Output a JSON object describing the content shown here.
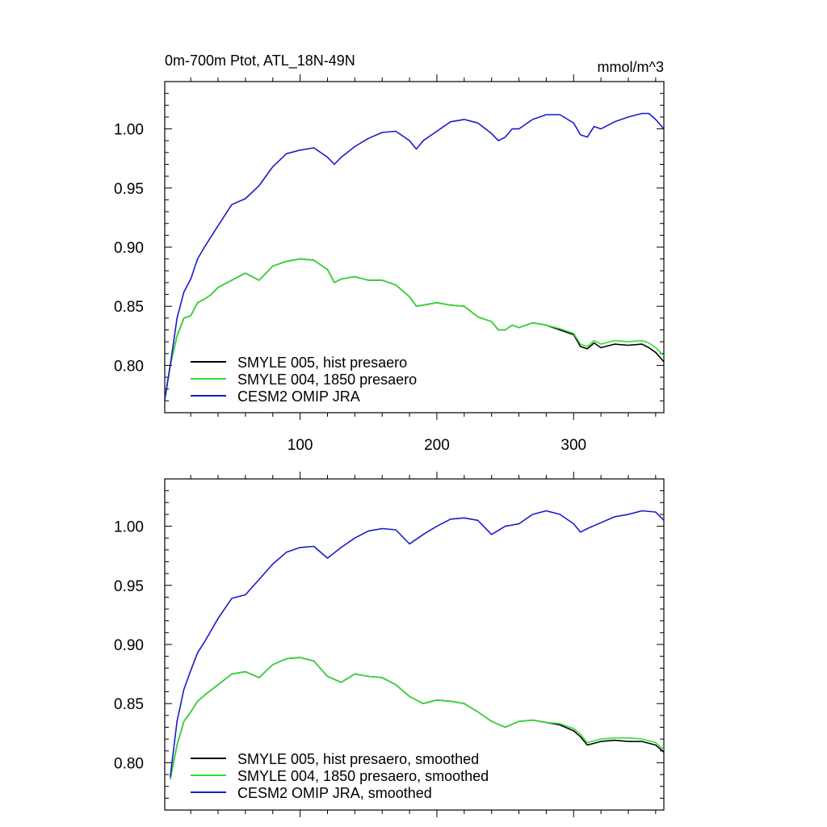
{
  "chart_data": [
    {
      "type": "line",
      "title": "0m-700m Ptot, ATL_18N-49N",
      "units": "mmol/m^3",
      "xlim": [
        1,
        366
      ],
      "ylim": [
        0.76,
        1.04
      ],
      "xticks": [
        100,
        200,
        300
      ],
      "xtick_labels": [
        "100",
        "200",
        "300"
      ],
      "yticks": [
        0.8,
        0.85,
        0.9,
        0.95,
        1.0
      ],
      "ytick_labels": [
        "0.80",
        "0.85",
        "0.90",
        "0.95",
        "1.00"
      ],
      "grid": false,
      "legend_position": "bottom-left",
      "series": [
        {
          "name": "SMYLE 005, hist presaero",
          "color": "#000000",
          "x": [
            1,
            5,
            10,
            15,
            20,
            25,
            30,
            35,
            40,
            50,
            60,
            70,
            80,
            90,
            100,
            110,
            120,
            125,
            130,
            140,
            150,
            160,
            170,
            180,
            185,
            190,
            200,
            210,
            220,
            230,
            240,
            245,
            250,
            255,
            260,
            270,
            280,
            290,
            300,
            305,
            310,
            315,
            320,
            330,
            340,
            350,
            355,
            360,
            366
          ],
          "y": [
            0.771,
            0.8,
            0.825,
            0.84,
            0.842,
            0.853,
            0.856,
            0.86,
            0.866,
            0.872,
            0.878,
            0.872,
            0.884,
            0.888,
            0.89,
            0.889,
            0.881,
            0.87,
            0.873,
            0.875,
            0.872,
            0.872,
            0.868,
            0.858,
            0.85,
            0.851,
            0.853,
            0.851,
            0.85,
            0.841,
            0.837,
            0.83,
            0.83,
            0.834,
            0.832,
            0.836,
            0.834,
            0.83,
            0.826,
            0.816,
            0.814,
            0.819,
            0.815,
            0.818,
            0.817,
            0.818,
            0.815,
            0.811,
            0.803
          ]
        },
        {
          "name": "SMYLE 004, 1850 presaero",
          "color": "#33dd33",
          "x": [
            1,
            5,
            10,
            15,
            20,
            25,
            30,
            35,
            40,
            50,
            60,
            70,
            80,
            90,
            100,
            110,
            120,
            125,
            130,
            140,
            150,
            160,
            170,
            180,
            185,
            190,
            200,
            210,
            220,
            230,
            240,
            245,
            250,
            255,
            260,
            270,
            280,
            290,
            300,
            305,
            310,
            315,
            320,
            330,
            340,
            350,
            355,
            360,
            366
          ],
          "y": [
            0.771,
            0.8,
            0.825,
            0.84,
            0.842,
            0.853,
            0.856,
            0.86,
            0.866,
            0.872,
            0.878,
            0.872,
            0.884,
            0.888,
            0.89,
            0.889,
            0.881,
            0.87,
            0.873,
            0.875,
            0.872,
            0.872,
            0.868,
            0.858,
            0.85,
            0.851,
            0.853,
            0.851,
            0.85,
            0.841,
            0.837,
            0.83,
            0.83,
            0.834,
            0.832,
            0.836,
            0.834,
            0.831,
            0.827,
            0.818,
            0.816,
            0.821,
            0.818,
            0.821,
            0.82,
            0.821,
            0.819,
            0.815,
            0.808
          ]
        },
        {
          "name": "CESM2 OMIP JRA",
          "color": "#1a1acc",
          "x": [
            1,
            5,
            10,
            15,
            20,
            25,
            30,
            40,
            50,
            60,
            70,
            80,
            90,
            100,
            110,
            120,
            125,
            130,
            140,
            150,
            160,
            170,
            180,
            185,
            190,
            200,
            210,
            220,
            230,
            240,
            245,
            250,
            255,
            260,
            270,
            280,
            290,
            300,
            305,
            310,
            315,
            320,
            330,
            340,
            350,
            355,
            360,
            366
          ],
          "y": [
            0.771,
            0.8,
            0.84,
            0.862,
            0.873,
            0.89,
            0.9,
            0.918,
            0.936,
            0.941,
            0.952,
            0.968,
            0.979,
            0.982,
            0.984,
            0.976,
            0.97,
            0.976,
            0.985,
            0.992,
            0.997,
            0.998,
            0.99,
            0.983,
            0.99,
            0.998,
            1.006,
            1.008,
            1.005,
            0.996,
            0.99,
            0.993,
            1.0,
            1.0,
            1.008,
            1.012,
            1.012,
            1.005,
            0.995,
            0.993,
            1.002,
            1.0,
            1.006,
            1.01,
            1.013,
            1.013,
            1.008,
            1.0
          ]
        }
      ]
    },
    {
      "type": "line",
      "xlim": [
        1,
        366
      ],
      "ylim": [
        0.76,
        1.04
      ],
      "xticks": [
        100,
        200,
        300
      ],
      "yticks": [
        0.8,
        0.85,
        0.9,
        0.95,
        1.0
      ],
      "ytick_labels": [
        "0.80",
        "0.85",
        "0.90",
        "0.95",
        "1.00"
      ],
      "grid": false,
      "legend_position": "bottom-left",
      "series": [
        {
          "name": "SMYLE 005, hist presaero, smoothed",
          "color": "#000000",
          "x": [
            5,
            10,
            15,
            20,
            25,
            30,
            40,
            50,
            60,
            70,
            80,
            90,
            100,
            110,
            120,
            130,
            140,
            150,
            160,
            170,
            180,
            190,
            200,
            210,
            220,
            230,
            240,
            250,
            260,
            270,
            280,
            290,
            300,
            305,
            310,
            320,
            330,
            340,
            350,
            360,
            366
          ],
          "y": [
            0.786,
            0.815,
            0.835,
            0.843,
            0.852,
            0.857,
            0.866,
            0.875,
            0.877,
            0.872,
            0.883,
            0.888,
            0.889,
            0.886,
            0.873,
            0.868,
            0.875,
            0.873,
            0.872,
            0.866,
            0.856,
            0.85,
            0.853,
            0.852,
            0.85,
            0.843,
            0.835,
            0.83,
            0.835,
            0.836,
            0.834,
            0.832,
            0.827,
            0.822,
            0.815,
            0.818,
            0.819,
            0.818,
            0.818,
            0.815,
            0.809
          ]
        },
        {
          "name": "SMYLE 004, 1850 presaero, smoothed",
          "color": "#33dd33",
          "x": [
            5,
            10,
            15,
            20,
            25,
            30,
            40,
            50,
            60,
            70,
            80,
            90,
            100,
            110,
            120,
            130,
            140,
            150,
            160,
            170,
            180,
            190,
            200,
            210,
            220,
            230,
            240,
            250,
            260,
            270,
            280,
            290,
            300,
            305,
            310,
            320,
            330,
            340,
            350,
            360,
            366
          ],
          "y": [
            0.786,
            0.815,
            0.835,
            0.843,
            0.852,
            0.857,
            0.866,
            0.875,
            0.877,
            0.872,
            0.883,
            0.888,
            0.889,
            0.886,
            0.873,
            0.868,
            0.875,
            0.873,
            0.872,
            0.866,
            0.856,
            0.85,
            0.853,
            0.852,
            0.85,
            0.843,
            0.835,
            0.83,
            0.835,
            0.836,
            0.834,
            0.833,
            0.829,
            0.824,
            0.817,
            0.82,
            0.821,
            0.821,
            0.82,
            0.817,
            0.811
          ]
        },
        {
          "name": "CESM2 OMIP JRA, smoothed",
          "color": "#1a1acc",
          "x": [
            5,
            10,
            15,
            20,
            25,
            30,
            40,
            50,
            60,
            70,
            80,
            90,
            100,
            110,
            120,
            130,
            140,
            150,
            160,
            170,
            180,
            190,
            200,
            210,
            220,
            230,
            240,
            250,
            260,
            270,
            280,
            290,
            300,
            305,
            310,
            320,
            330,
            340,
            350,
            360,
            366
          ],
          "y": [
            0.788,
            0.835,
            0.862,
            0.878,
            0.893,
            0.902,
            0.922,
            0.939,
            0.942,
            0.955,
            0.968,
            0.978,
            0.982,
            0.983,
            0.973,
            0.982,
            0.99,
            0.996,
            0.998,
            0.997,
            0.985,
            0.993,
            1.0,
            1.006,
            1.007,
            1.005,
            0.993,
            1.0,
            1.002,
            1.01,
            1.013,
            1.01,
            1.002,
            0.995,
            0.998,
            1.003,
            1.008,
            1.01,
            1.013,
            1.012,
            1.005
          ]
        }
      ]
    }
  ]
}
